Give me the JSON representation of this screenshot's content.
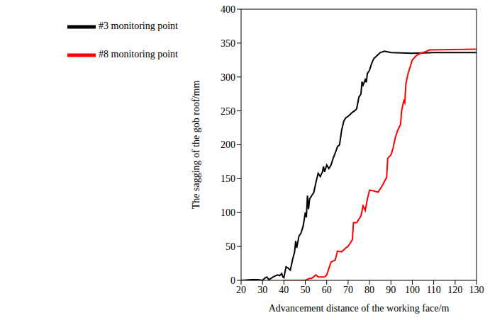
{
  "chart_data": {
    "type": "line",
    "x_label": "Advancement distance of the working face/m",
    "y_label": "The sagging of the gob roof/mm",
    "xlim": [
      20,
      130
    ],
    "xticks": [
      20,
      30,
      40,
      50,
      60,
      70,
      80,
      90,
      100,
      110,
      120,
      130
    ],
    "ylim": [
      0,
      400
    ],
    "yticks": [
      0,
      50,
      100,
      150,
      200,
      250,
      300,
      350,
      400
    ],
    "grid": false,
    "legend": "top-left",
    "series": [
      {
        "name": "#3 monitoring point",
        "color": "#000000",
        "x": [
          20,
          25,
          28,
          30,
          31,
          32,
          33,
          35,
          37,
          38,
          39,
          39.5,
          40,
          41,
          42,
          43,
          44,
          45,
          45.5,
          46,
          47,
          48,
          49,
          50,
          50.5,
          51,
          51.5,
          52,
          53,
          54,
          55,
          56,
          57,
          58,
          58.5,
          59,
          60,
          61,
          62,
          63,
          64,
          65,
          66,
          67,
          68,
          69,
          70,
          71,
          72,
          73,
          74,
          75,
          76,
          76.5,
          77,
          78,
          78.5,
          79,
          80,
          81,
          82,
          83,
          85,
          87,
          90,
          100,
          110,
          130
        ],
        "values": [
          0,
          1,
          1,
          0,
          3,
          5,
          1,
          5,
          8,
          7,
          10,
          5,
          4,
          20,
          18,
          15,
          30,
          42,
          58,
          48,
          65,
          70,
          80,
          100,
          93,
          125,
          105,
          120,
          125,
          130,
          145,
          158,
          153,
          160,
          168,
          160,
          170,
          165,
          170,
          180,
          188,
          197,
          200,
          222,
          235,
          240,
          242,
          245,
          248,
          250,
          253,
          270,
          275,
          293,
          288,
          296,
          292,
          305,
          310,
          320,
          327,
          330,
          336,
          338,
          336,
          335,
          336,
          336
        ]
      },
      {
        "name": "#8 monitoring point",
        "color": "#ff0000",
        "x": [
          40,
          45,
          50,
          52,
          53,
          55,
          56,
          59,
          60,
          62,
          64,
          65,
          67,
          69,
          70,
          72,
          72.5,
          74,
          75,
          76,
          77,
          78,
          79,
          80,
          82,
          84,
          86,
          88,
          88.5,
          90,
          91,
          92,
          93,
          94.5,
          95,
          96,
          96.5,
          97,
          98,
          100,
          102,
          104,
          106,
          108,
          130
        ],
        "values": [
          0,
          0,
          0,
          3,
          3,
          8,
          5,
          5,
          8,
          27,
          30,
          43,
          42,
          48,
          50,
          60,
          85,
          85,
          90,
          95,
          110,
          103,
          120,
          133,
          132,
          130,
          140,
          152,
          180,
          185,
          195,
          210,
          220,
          230,
          250,
          265,
          262,
          290,
          305,
          325,
          332,
          335,
          337,
          340,
          341
        ]
      }
    ]
  }
}
